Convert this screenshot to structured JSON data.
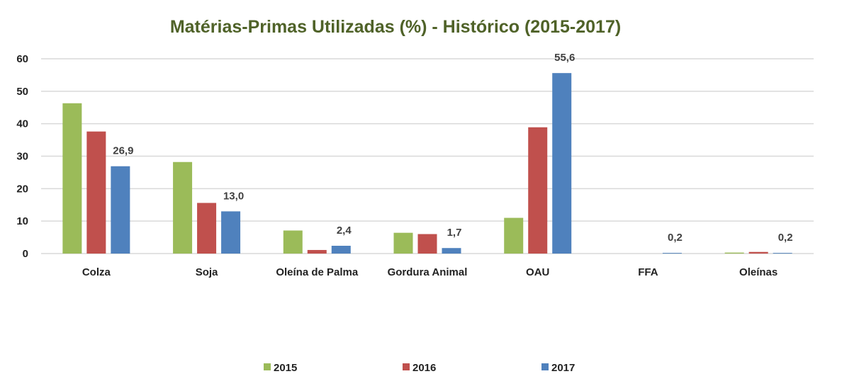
{
  "chart_data": {
    "type": "bar",
    "title": "Matérias-Primas Utilizadas (%) - Histórico (2015-2017)",
    "xlabel": "",
    "ylabel": "",
    "ylim": [
      0,
      60
    ],
    "yticks": [
      0,
      10,
      20,
      30,
      40,
      50,
      60
    ],
    "grid": true,
    "legend_position": "bottom",
    "categories": [
      "Colza",
      "Soja",
      "Oleína de Palma",
      "Gordura Animal",
      "OAU",
      "FFA",
      "Oleínas"
    ],
    "series": [
      {
        "name": "2015",
        "color": "#9BBB59",
        "values": [
          46.3,
          28.2,
          7.1,
          6.4,
          11.0,
          0.0,
          0.3
        ]
      },
      {
        "name": "2016",
        "color": "#C0504D",
        "values": [
          37.6,
          15.6,
          1.1,
          6.0,
          38.9,
          0.0,
          0.5
        ]
      },
      {
        "name": "2017",
        "color": "#4F81BD",
        "values": [
          26.9,
          13.0,
          2.4,
          1.7,
          55.6,
          0.2,
          0.2
        ]
      }
    ],
    "data_labels": [
      {
        "series": "2017",
        "category": "Colza",
        "text": "26,9"
      },
      {
        "series": "2017",
        "category": "Soja",
        "text": "13,0"
      },
      {
        "series": "2017",
        "category": "Oleína de Palma",
        "text": "2,4"
      },
      {
        "series": "2017",
        "category": "Gordura Animal",
        "text": "1,7"
      },
      {
        "series": "2017",
        "category": "OAU",
        "text": "55,6"
      },
      {
        "series": "2017",
        "category": "FFA",
        "text": "0,2"
      },
      {
        "series": "2017",
        "category": "Oleínas",
        "text": "0,2"
      }
    ]
  }
}
